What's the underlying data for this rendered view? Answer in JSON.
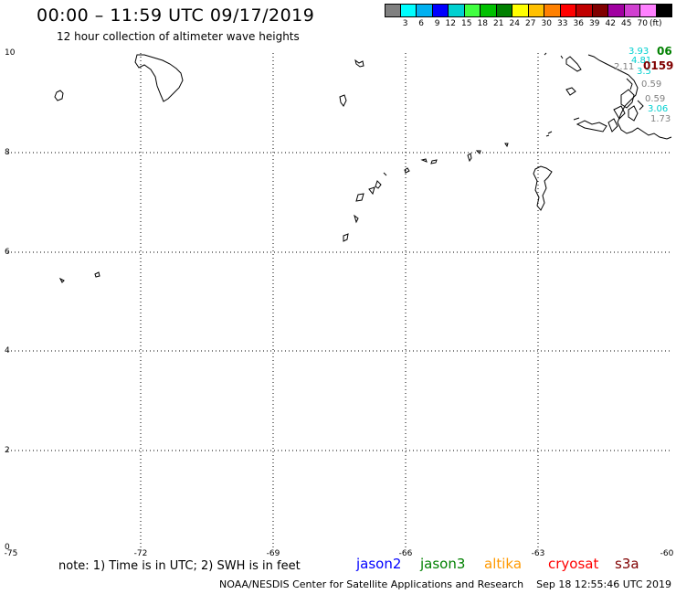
{
  "title": "00:00 – 11:59 UTC 09/17/2019",
  "subtitle": "12 hour collection of altimeter wave heights",
  "scale": {
    "unit": "(ft)",
    "colors": [
      "#808080",
      "#00ffff",
      "#00b0f0",
      "#0000ff",
      "#00d0d0",
      "#40ff40",
      "#00c000",
      "#008000",
      "#ffff00",
      "#ffc000",
      "#ff8000",
      "#ff0000",
      "#c00000",
      "#800000",
      "#a000a0",
      "#d040d0",
      "#ff80ff",
      "#000000"
    ],
    "labels": [
      "3",
      "6",
      "9",
      "12",
      "15",
      "18",
      "21",
      "24",
      "27",
      "30",
      "33",
      "36",
      "39",
      "42",
      "45",
      "70"
    ]
  },
  "axes": {
    "y_ticks": [
      "10",
      "8",
      "6",
      "4",
      "2",
      "0"
    ],
    "x_ticks": [
      "-75",
      "-72",
      "-69",
      "-66",
      "-63",
      "-60"
    ],
    "lon_range": [
      -75,
      -60
    ],
    "lat_range": [
      0,
      10
    ]
  },
  "wave_values": [
    {
      "text": "3.93",
      "color": "#00d0d0"
    },
    {
      "text": "06",
      "color": "#008000"
    },
    {
      "text": "4.81",
      "color": "#00d0d0"
    },
    {
      "text": "2.11",
      "color": "#808080"
    },
    {
      "text": "3.5",
      "color": "#00d0d0"
    },
    {
      "text": "0159",
      "color": "#800000"
    },
    {
      "text": "0.59",
      "color": "#808080"
    },
    {
      "text": "0.59",
      "color": "#808080"
    },
    {
      "text": "3.06",
      "color": "#00d0d0"
    },
    {
      "text": "1.73",
      "color": "#808080"
    }
  ],
  "note": "note: 1) Time is in UTC; 2) SWH is in feet",
  "satellites": [
    {
      "name": "jason2",
      "color": "#0000ff"
    },
    {
      "name": "jason3",
      "color": "#008000"
    },
    {
      "name": "altika",
      "color": "#ff9900"
    },
    {
      "name": "cryosat",
      "color": "#ff0000"
    },
    {
      "name": "s3a",
      "color": "#800000"
    }
  ],
  "footer": "NOAA/NESDIS Center for Satellite Applications and Research    Sep 18 12:55:46 UTC 2019"
}
